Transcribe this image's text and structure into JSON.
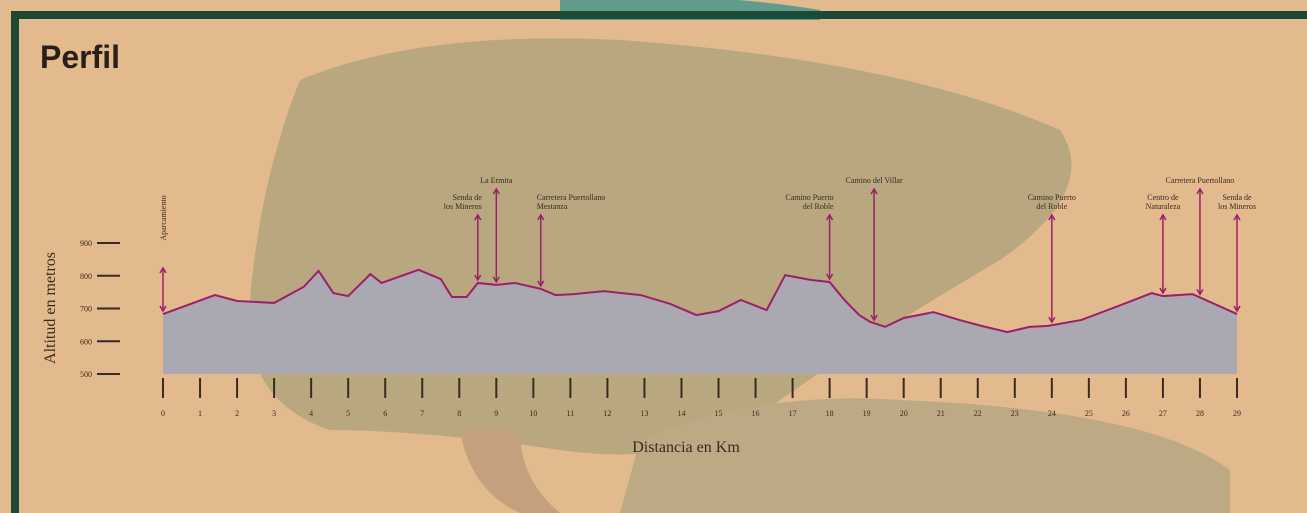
{
  "chart_data": {
    "type": "area",
    "title": "Perfil",
    "x_label": "Distancia en Km",
    "y_label": "Altitud en metros",
    "x": [
      0,
      1.4,
      2,
      3,
      3.8,
      4.2,
      4.6,
      5,
      5.6,
      5.9,
      6.9,
      7.5,
      7.8,
      8.2,
      8.5,
      9,
      9.5,
      10.2,
      10.6,
      11.1,
      11.9,
      12.9,
      13.7,
      14.4,
      15,
      15.6,
      16.3,
      16.8,
      17.5,
      18,
      18.4,
      18.8,
      19.1,
      19.5,
      20,
      20.8,
      21.5,
      22.1,
      22.8,
      23.4,
      23.9,
      24.8,
      25.8,
      26.7,
      27,
      27.8,
      29
    ],
    "series": [
      {
        "color": "#9b1f6a",
        "area_color": "#aaa9b1",
        "values": [
          683,
          741,
          723,
          717,
          766,
          815,
          747,
          738,
          805,
          778,
          818,
          790,
          735,
          735,
          778,
          772,
          778,
          760,
          741,
          744,
          753,
          741,
          714,
          680,
          692,
          726,
          695,
          802,
          787,
          781,
          726,
          680,
          659,
          644,
          671,
          689,
          665,
          647,
          628,
          644,
          647,
          665,
          708,
          747,
          738,
          744,
          683
        ]
      }
    ],
    "xlim": [
      0,
      29
    ],
    "xticks": [
      0,
      1,
      2,
      3,
      4,
      5,
      6,
      7,
      8,
      9,
      10,
      11,
      12,
      13,
      14,
      15,
      16,
      17,
      18,
      19,
      20,
      21,
      22,
      23,
      24,
      25,
      26,
      27,
      28,
      29
    ],
    "ylim": [
      500,
      900
    ],
    "yticks": [
      500,
      600,
      700,
      800,
      900
    ],
    "annotations": [
      {
        "x": 0,
        "lines": [
          "Aparcamiento"
        ]
      },
      {
        "x": 8.5,
        "lines": [
          "Senda de",
          "los Mineros"
        ]
      },
      {
        "x": 9,
        "lines": [
          "La Ermita"
        ]
      },
      {
        "x": 10.2,
        "lines": [
          "Carretera Puertollano",
          "Mestanza"
        ]
      },
      {
        "x": 18,
        "lines": [
          "Camino Puerto",
          "del Roble"
        ]
      },
      {
        "x": 19.2,
        "lines": [
          "Camino del Villar"
        ]
      },
      {
        "x": 24,
        "lines": [
          "Camino Puerto",
          "del Roble"
        ]
      },
      {
        "x": 27,
        "lines": [
          "Centro de",
          "Naturaleza"
        ]
      },
      {
        "x": 28,
        "lines": [
          "Carretera Puertollano"
        ]
      },
      {
        "x": 29,
        "lines": [
          "Senda de",
          "los Mineros"
        ]
      }
    ]
  }
}
